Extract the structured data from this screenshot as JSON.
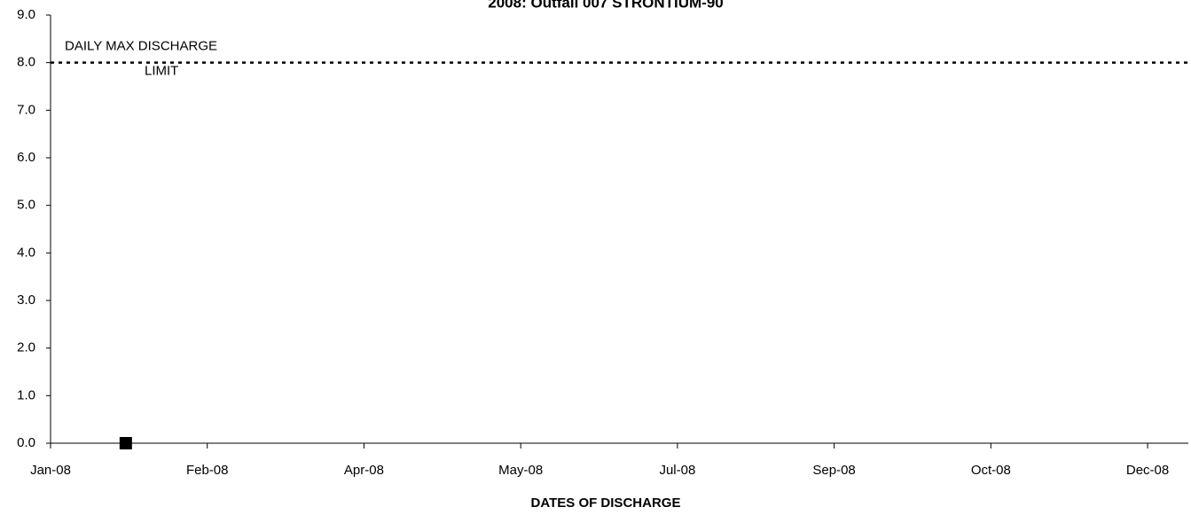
{
  "chart_data": {
    "type": "scatter",
    "title": "2008: Outfall 007 STRONTIUM-90",
    "xlabel": "DATES OF DISCHARGE",
    "xlim": [
      39448,
      39811
    ],
    "xticks": [
      {
        "value": 39448,
        "label": "Jan-08"
      },
      {
        "value": 39498,
        "label": "Feb-08"
      },
      {
        "value": 39548,
        "label": "Apr-08"
      },
      {
        "value": 39598,
        "label": "May-08"
      },
      {
        "value": 39648,
        "label": "Jul-08"
      },
      {
        "value": 39698,
        "label": "Sep-08"
      },
      {
        "value": 39748,
        "label": "Oct-08"
      },
      {
        "value": 39798,
        "label": "Dec-08"
      }
    ],
    "ylim": [
      0,
      9
    ],
    "yticks": [
      {
        "value": 0,
        "label": "0.0"
      },
      {
        "value": 1,
        "label": "1.0"
      },
      {
        "value": 2,
        "label": "2.0"
      },
      {
        "value": 3,
        "label": "3.0"
      },
      {
        "value": 4,
        "label": "4.0"
      },
      {
        "value": 5,
        "label": "5.0"
      },
      {
        "value": 6,
        "label": "6.0"
      },
      {
        "value": 7,
        "label": "7.0"
      },
      {
        "value": 8,
        "label": "8.0"
      },
      {
        "value": 9,
        "label": "9.0"
      }
    ],
    "limit": {
      "value": 8,
      "label": [
        "DAILY MAX DISCHARGE",
        "LIMIT"
      ],
      "color": "#000000"
    },
    "series": [
      {
        "color": "#000000",
        "x": [
          39472
        ],
        "values": [
          0
        ]
      }
    ]
  }
}
